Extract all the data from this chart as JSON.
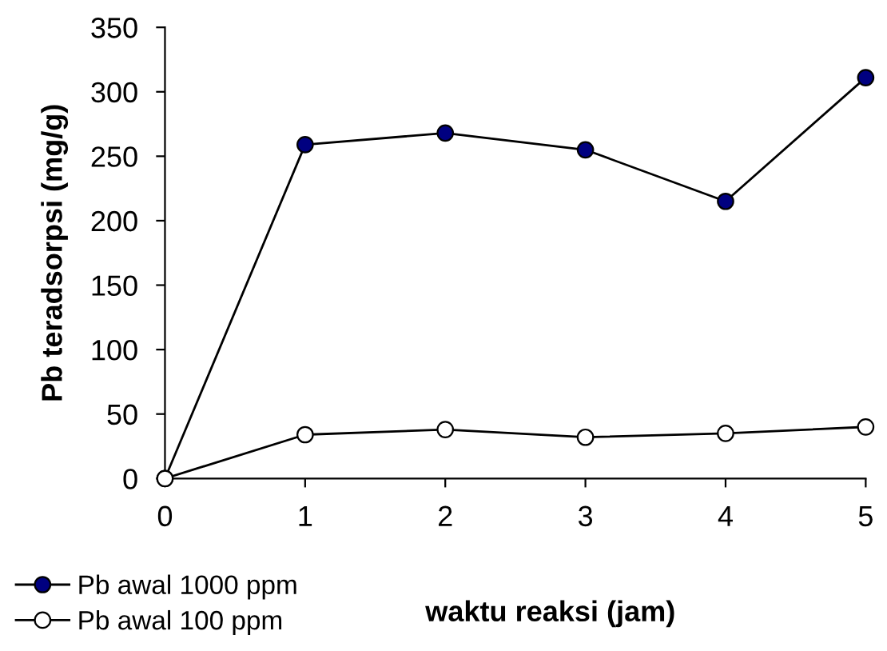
{
  "chart_data": {
    "type": "line",
    "xlabel": "waktu reaksi (jam)",
    "ylabel": "Pb teradsorpsi (mg/g)",
    "x": [
      0,
      1,
      2,
      3,
      4,
      5
    ],
    "series": [
      {
        "name": "Pb awal 1000 ppm",
        "color": "#000080",
        "values": [
          0,
          259,
          268,
          255,
          215,
          311
        ]
      },
      {
        "name": "Pb awal 100 ppm",
        "color": "#ffffff",
        "values": [
          0,
          34,
          38,
          32,
          35,
          40
        ]
      }
    ],
    "xlim": [
      0,
      5
    ],
    "xticks": [
      0,
      1,
      2,
      3,
      4,
      5
    ],
    "ylim": [
      0,
      350
    ],
    "yticks": [
      0,
      50,
      100,
      150,
      200,
      250,
      300,
      350
    ],
    "grid": false,
    "legend": "bottom left",
    "marker": "circle",
    "line_style": "solid"
  }
}
